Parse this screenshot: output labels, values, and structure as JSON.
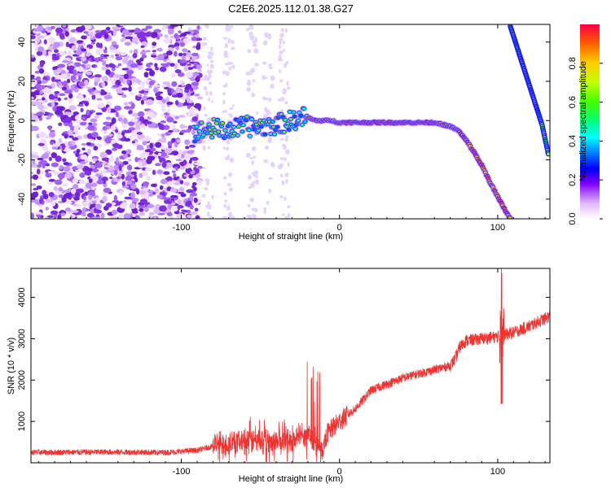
{
  "chart_data": [
    {
      "type": "heatmap",
      "title": "C2E6.2025.112.01.38.G27",
      "xlabel": "Height of straight line (km)",
      "ylabel": "Frequency (Hz)",
      "xlim": [
        -195,
        133
      ],
      "ylim": [
        -50,
        49
      ],
      "x_ticks": [
        -100,
        0,
        100
      ],
      "y_ticks": [
        -40,
        -20,
        0,
        20,
        40
      ],
      "colorbar": {
        "label": "Normalized spectral amplitude",
        "ticks": [
          "0.0",
          "0.2",
          "0.4",
          "0.6",
          "0.8"
        ],
        "tick_values": [
          0.0,
          0.2,
          0.4,
          0.6,
          0.8
        ],
        "range": [
          0,
          1
        ]
      },
      "signal_trace": {
        "x": [
          -92,
          -80,
          -70,
          -60,
          -50,
          -40,
          -30,
          -22,
          -15,
          -5,
          0,
          10,
          20,
          30,
          40,
          50,
          60,
          65,
          70,
          75,
          80,
          85,
          90,
          95,
          100,
          105,
          108
        ],
        "y": [
          -6,
          -4,
          -5,
          -3,
          -3,
          -2,
          0,
          2,
          0,
          0,
          -1,
          -1,
          -1,
          -1,
          -1,
          -1,
          -1,
          -2,
          -3,
          -5,
          -10,
          -16,
          -23,
          -31,
          -39,
          -46,
          -50
        ]
      },
      "upper_trace": {
        "x": [
          108,
          112,
          116,
          120,
          124,
          128,
          132
        ],
        "y": [
          48,
          38,
          28,
          18,
          8,
          -2,
          -17
        ]
      },
      "noise_region": [
        -195,
        -88
      ]
    },
    {
      "type": "line",
      "xlabel": "Height of straight line (km)",
      "ylabel": "SNR (10 * v/v)",
      "xlim": [
        -195,
        133
      ],
      "ylim": [
        0,
        4700
      ],
      "x_ticks": [
        -100,
        0,
        100
      ],
      "y_ticks": [
        1000,
        2000,
        3000,
        4000
      ],
      "series_color": "#ee3333",
      "trend": {
        "x": [
          -195,
          -150,
          -110,
          -90,
          -75,
          -60,
          -40,
          -20,
          -10,
          -8,
          0,
          10,
          20,
          30,
          40,
          50,
          60,
          70,
          73,
          76,
          80,
          90,
          100,
          110,
          120,
          133
        ],
        "y": [
          250,
          260,
          250,
          300,
          450,
          550,
          500,
          650,
          300,
          700,
          1000,
          1300,
          1750,
          1900,
          2050,
          2150,
          2250,
          2350,
          2500,
          2800,
          2950,
          3000,
          3050,
          3150,
          3300,
          3550
        ]
      },
      "spike": {
        "x": 102.5,
        "max": 4700,
        "min": 1400
      }
    }
  ]
}
